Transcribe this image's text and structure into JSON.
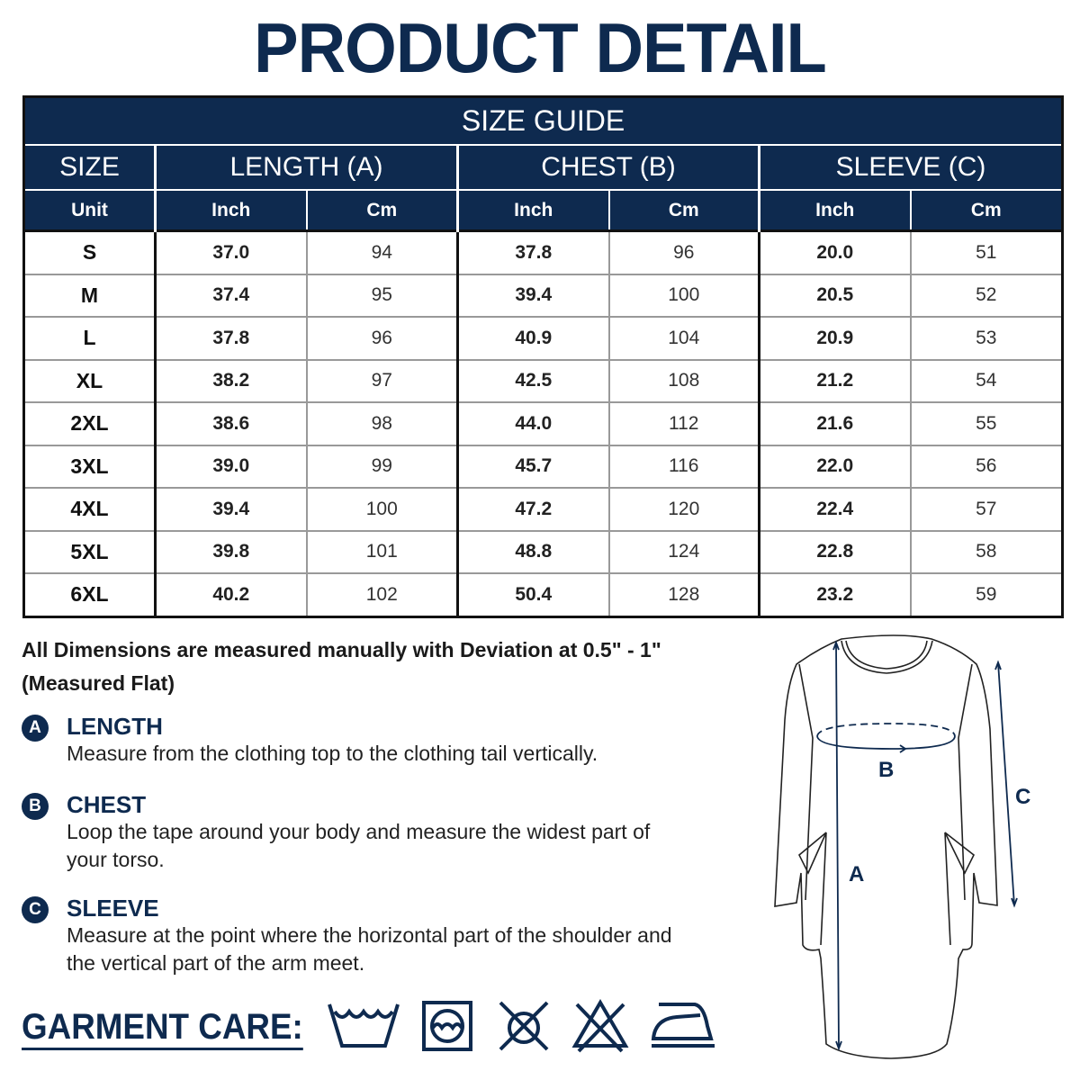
{
  "title": "PRODUCT DETAIL",
  "size_guide": {
    "title": "SIZE GUIDE",
    "headers": [
      "SIZE",
      "LENGTH (A)",
      "CHEST (B)",
      "SLEEVE (C)"
    ],
    "units": [
      "Unit",
      "Inch",
      "Cm",
      "Inch",
      "Cm",
      "Inch",
      "Cm"
    ],
    "rows": [
      [
        "S",
        "37.0",
        "94",
        "37.8",
        "96",
        "20.0",
        "51"
      ],
      [
        "M",
        "37.4",
        "95",
        "39.4",
        "100",
        "20.5",
        "52"
      ],
      [
        "L",
        "37.8",
        "96",
        "40.9",
        "104",
        "20.9",
        "53"
      ],
      [
        "XL",
        "38.2",
        "97",
        "42.5",
        "108",
        "21.2",
        "54"
      ],
      [
        "2XL",
        "38.6",
        "98",
        "44.0",
        "112",
        "21.6",
        "55"
      ],
      [
        "3XL",
        "39.0",
        "99",
        "45.7",
        "116",
        "22.0",
        "56"
      ],
      [
        "4XL",
        "39.4",
        "100",
        "47.2",
        "120",
        "22.4",
        "57"
      ],
      [
        "5XL",
        "39.8",
        "101",
        "48.8",
        "124",
        "22.8",
        "58"
      ],
      [
        "6XL",
        "40.2",
        "102",
        "50.4",
        "128",
        "23.2",
        "59"
      ]
    ]
  },
  "note": "All Dimensions are measured manually with Deviation at 0.5\" - 1\" (Measured Flat)",
  "measurements": [
    {
      "badge": "A",
      "name": "LENGTH",
      "desc": "Measure from the clothing top to the clothing tail vertically."
    },
    {
      "badge": "B",
      "name": "CHEST",
      "desc": "Loop the tape around your body and measure the widest part of your torso."
    },
    {
      "badge": "C",
      "name": "SLEEVE",
      "desc": "Measure at the point where the horizontal part of the shoulder and the vertical part of the arm meet."
    }
  ],
  "diagram_labels": {
    "a": "A",
    "b": "B",
    "c": "C"
  },
  "garment_care": {
    "label": "GARMENT CARE:",
    "icons": [
      "hand-wash-icon",
      "tumble-dry-icon",
      "do-not-dry-clean-icon",
      "do-not-bleach-icon",
      "iron-icon"
    ]
  },
  "colors": {
    "navy": "#0e2a4f"
  }
}
